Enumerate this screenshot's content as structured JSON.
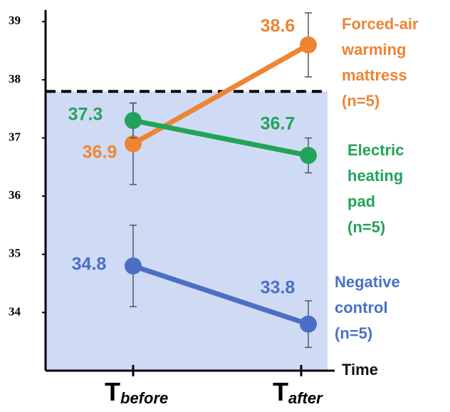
{
  "chart_data": {
    "type": "line",
    "x_symbol": "T",
    "categories": [
      "before",
      "after"
    ],
    "x_label": "Time",
    "ylim": [
      33,
      39.2
    ],
    "yticks": [
      34,
      35,
      36,
      37,
      38,
      39
    ],
    "threshold": 37.8,
    "series": [
      {
        "name": [
          "Forced-air",
          "warming",
          "mattress",
          "(n=5)"
        ],
        "color": "#ee8434",
        "values": [
          36.9,
          38.6
        ],
        "errors": [
          0.7,
          0.55
        ]
      },
      {
        "name": [
          "Electric",
          "heating",
          "pad",
          "(n=5)"
        ],
        "color": "#22a35a",
        "values": [
          37.3,
          36.7
        ],
        "errors": [
          0.3,
          0.3
        ]
      },
      {
        "name": [
          "Negative",
          "control",
          "(n=5)"
        ],
        "color": "#4a6fc4",
        "values": [
          34.8,
          33.8
        ],
        "errors": [
          0.7,
          0.4
        ]
      }
    ]
  }
}
